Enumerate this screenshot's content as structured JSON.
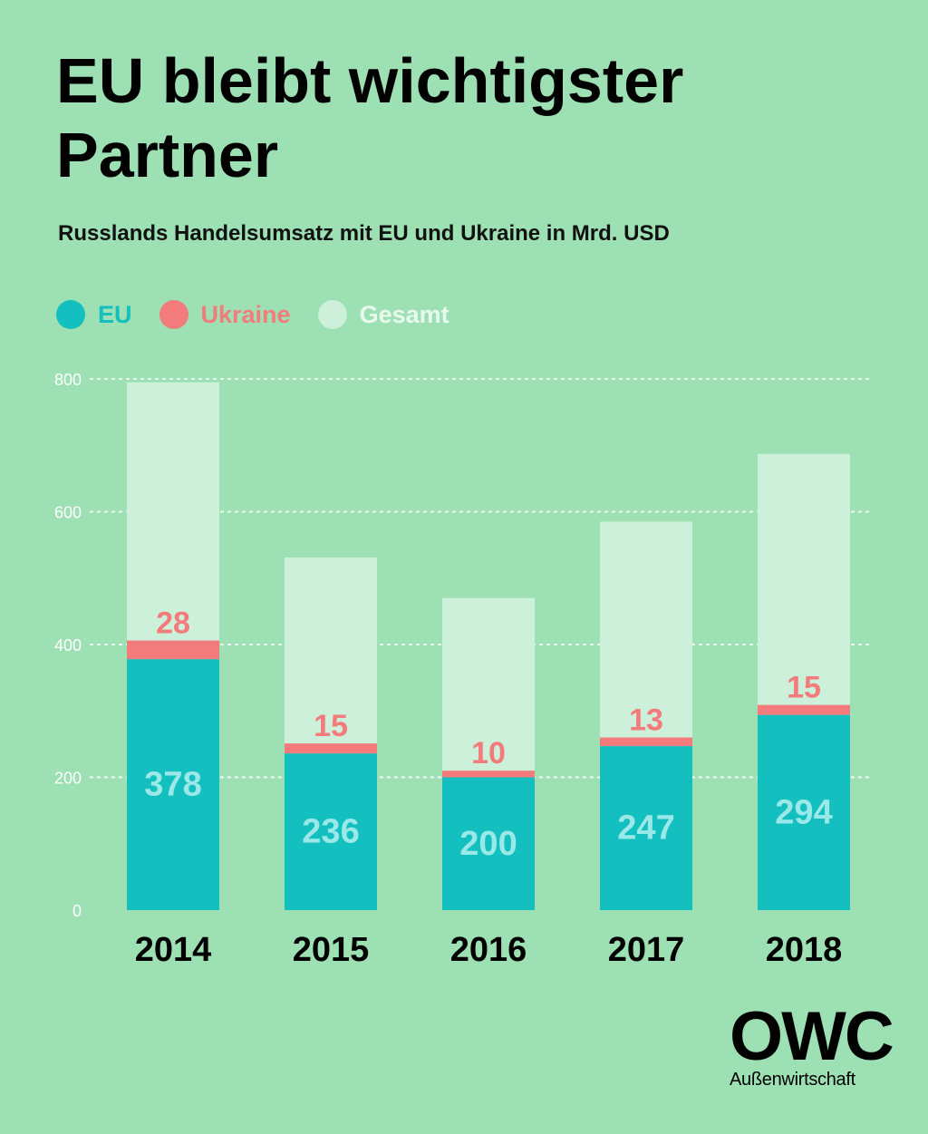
{
  "title": "EU bleibt wichtigster Partner",
  "subtitle": "Russlands Handelsumsatz mit EU und Ukraine in Mrd. USD",
  "legend": [
    {
      "label": "EU",
      "color": "#14bfbf"
    },
    {
      "label": "Ukraine",
      "color": "#f37b7b"
    },
    {
      "label": "Gesamt",
      "color": "#cdf0da"
    }
  ],
  "chart_data": {
    "type": "bar",
    "categories": [
      "2014",
      "2015",
      "2016",
      "2017",
      "2018"
    ],
    "series": [
      {
        "name": "EU",
        "values": [
          378,
          236,
          200,
          247,
          294
        ],
        "color": "#14bfbf"
      },
      {
        "name": "Ukraine",
        "values": [
          28,
          15,
          10,
          13,
          15
        ],
        "color": "#f37b7b"
      },
      {
        "name": "Gesamt",
        "values": [
          795,
          531,
          470,
          585,
          687
        ],
        "color": "#cdf0da"
      }
    ],
    "yticks": [
      0,
      200,
      400,
      600,
      800
    ],
    "ylim": [
      0,
      800
    ],
    "grid": true,
    "eu_label_color": "#9be8e8"
  },
  "logo": {
    "mark": "OWC",
    "sub": "Außenwirtschaft"
  }
}
